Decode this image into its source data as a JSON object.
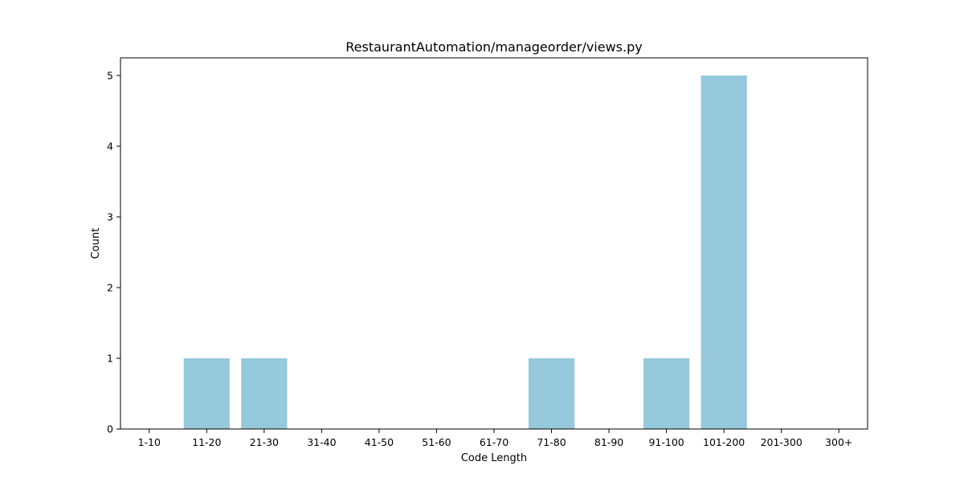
{
  "chart_data": {
    "type": "bar",
    "title": "RestaurantAutomation/manageorder/views.py",
    "xlabel": "Code Length",
    "ylabel": "Count",
    "categories": [
      "1-10",
      "11-20",
      "21-30",
      "31-40",
      "41-50",
      "51-60",
      "61-70",
      "71-80",
      "81-90",
      "91-100",
      "101-200",
      "201-300",
      "300+"
    ],
    "values": [
      0,
      1,
      1,
      0,
      0,
      0,
      0,
      1,
      0,
      1,
      5,
      0,
      0
    ],
    "ylim": [
      0,
      5.25
    ],
    "yticks": [
      0,
      1,
      2,
      3,
      4,
      5
    ],
    "grid": false,
    "bar_color": "#96c9dc"
  }
}
